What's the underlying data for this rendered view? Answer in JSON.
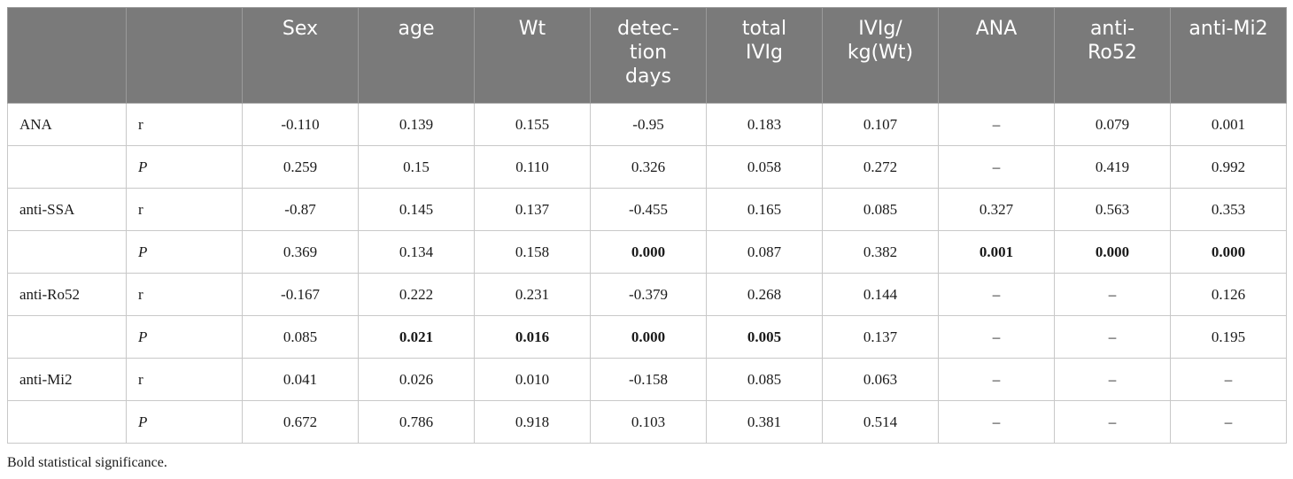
{
  "columns": [
    "",
    "",
    "Sex",
    "age",
    "Wt",
    "detec-\ntion\ndays",
    "total\nIVIg",
    "IVIg/\nkg(Wt)",
    "ANA",
    "anti-\nRo52",
    "anti-Mi2"
  ],
  "rows": [
    {
      "variable": "ANA",
      "stat": "r",
      "values": [
        "-0.110",
        "0.139",
        "0.155",
        "-0.95",
        "0.183",
        "0.107",
        "–",
        "0.079",
        "0.001"
      ],
      "bold": [
        false,
        false,
        false,
        false,
        false,
        false,
        false,
        false,
        false
      ]
    },
    {
      "variable": "",
      "stat": "P",
      "values": [
        "0.259",
        "0.15",
        "0.110",
        "0.326",
        "0.058",
        "0.272",
        "–",
        "0.419",
        "0.992"
      ],
      "bold": [
        false,
        false,
        false,
        false,
        false,
        false,
        false,
        false,
        false
      ]
    },
    {
      "variable": "anti-SSA",
      "stat": "r",
      "values": [
        "-0.87",
        "0.145",
        "0.137",
        "-0.455",
        "0.165",
        "0.085",
        "0.327",
        "0.563",
        "0.353"
      ],
      "bold": [
        false,
        false,
        false,
        false,
        false,
        false,
        false,
        false,
        false
      ]
    },
    {
      "variable": "",
      "stat": "P",
      "values": [
        "0.369",
        "0.134",
        "0.158",
        "0.000",
        "0.087",
        "0.382",
        "0.001",
        "0.000",
        "0.000"
      ],
      "bold": [
        false,
        false,
        false,
        true,
        false,
        false,
        true,
        true,
        true
      ]
    },
    {
      "variable": "anti-Ro52",
      "stat": "r",
      "values": [
        "-0.167",
        "0.222",
        "0.231",
        "-0.379",
        "0.268",
        "0.144",
        "–",
        "–",
        "0.126"
      ],
      "bold": [
        false,
        false,
        false,
        false,
        false,
        false,
        false,
        false,
        false
      ]
    },
    {
      "variable": "",
      "stat": "P",
      "values": [
        "0.085",
        "0.021",
        "0.016",
        "0.000",
        "0.005",
        "0.137",
        "–",
        "–",
        "0.195"
      ],
      "bold": [
        false,
        true,
        true,
        true,
        true,
        false,
        false,
        false,
        false
      ]
    },
    {
      "variable": "anti-Mi2",
      "stat": "r",
      "values": [
        "0.041",
        "0.026",
        "0.010",
        "-0.158",
        "0.085",
        "0.063",
        "–",
        "–",
        "–"
      ],
      "bold": [
        false,
        false,
        false,
        false,
        false,
        false,
        false,
        false,
        false
      ]
    },
    {
      "variable": "",
      "stat": "P",
      "values": [
        "0.672",
        "0.786",
        "0.918",
        "0.103",
        "0.381",
        "0.514",
        "–",
        "–",
        "–"
      ],
      "bold": [
        false,
        false,
        false,
        false,
        false,
        false,
        false,
        false,
        false
      ]
    }
  ],
  "footnote": "Bold statistical significance."
}
